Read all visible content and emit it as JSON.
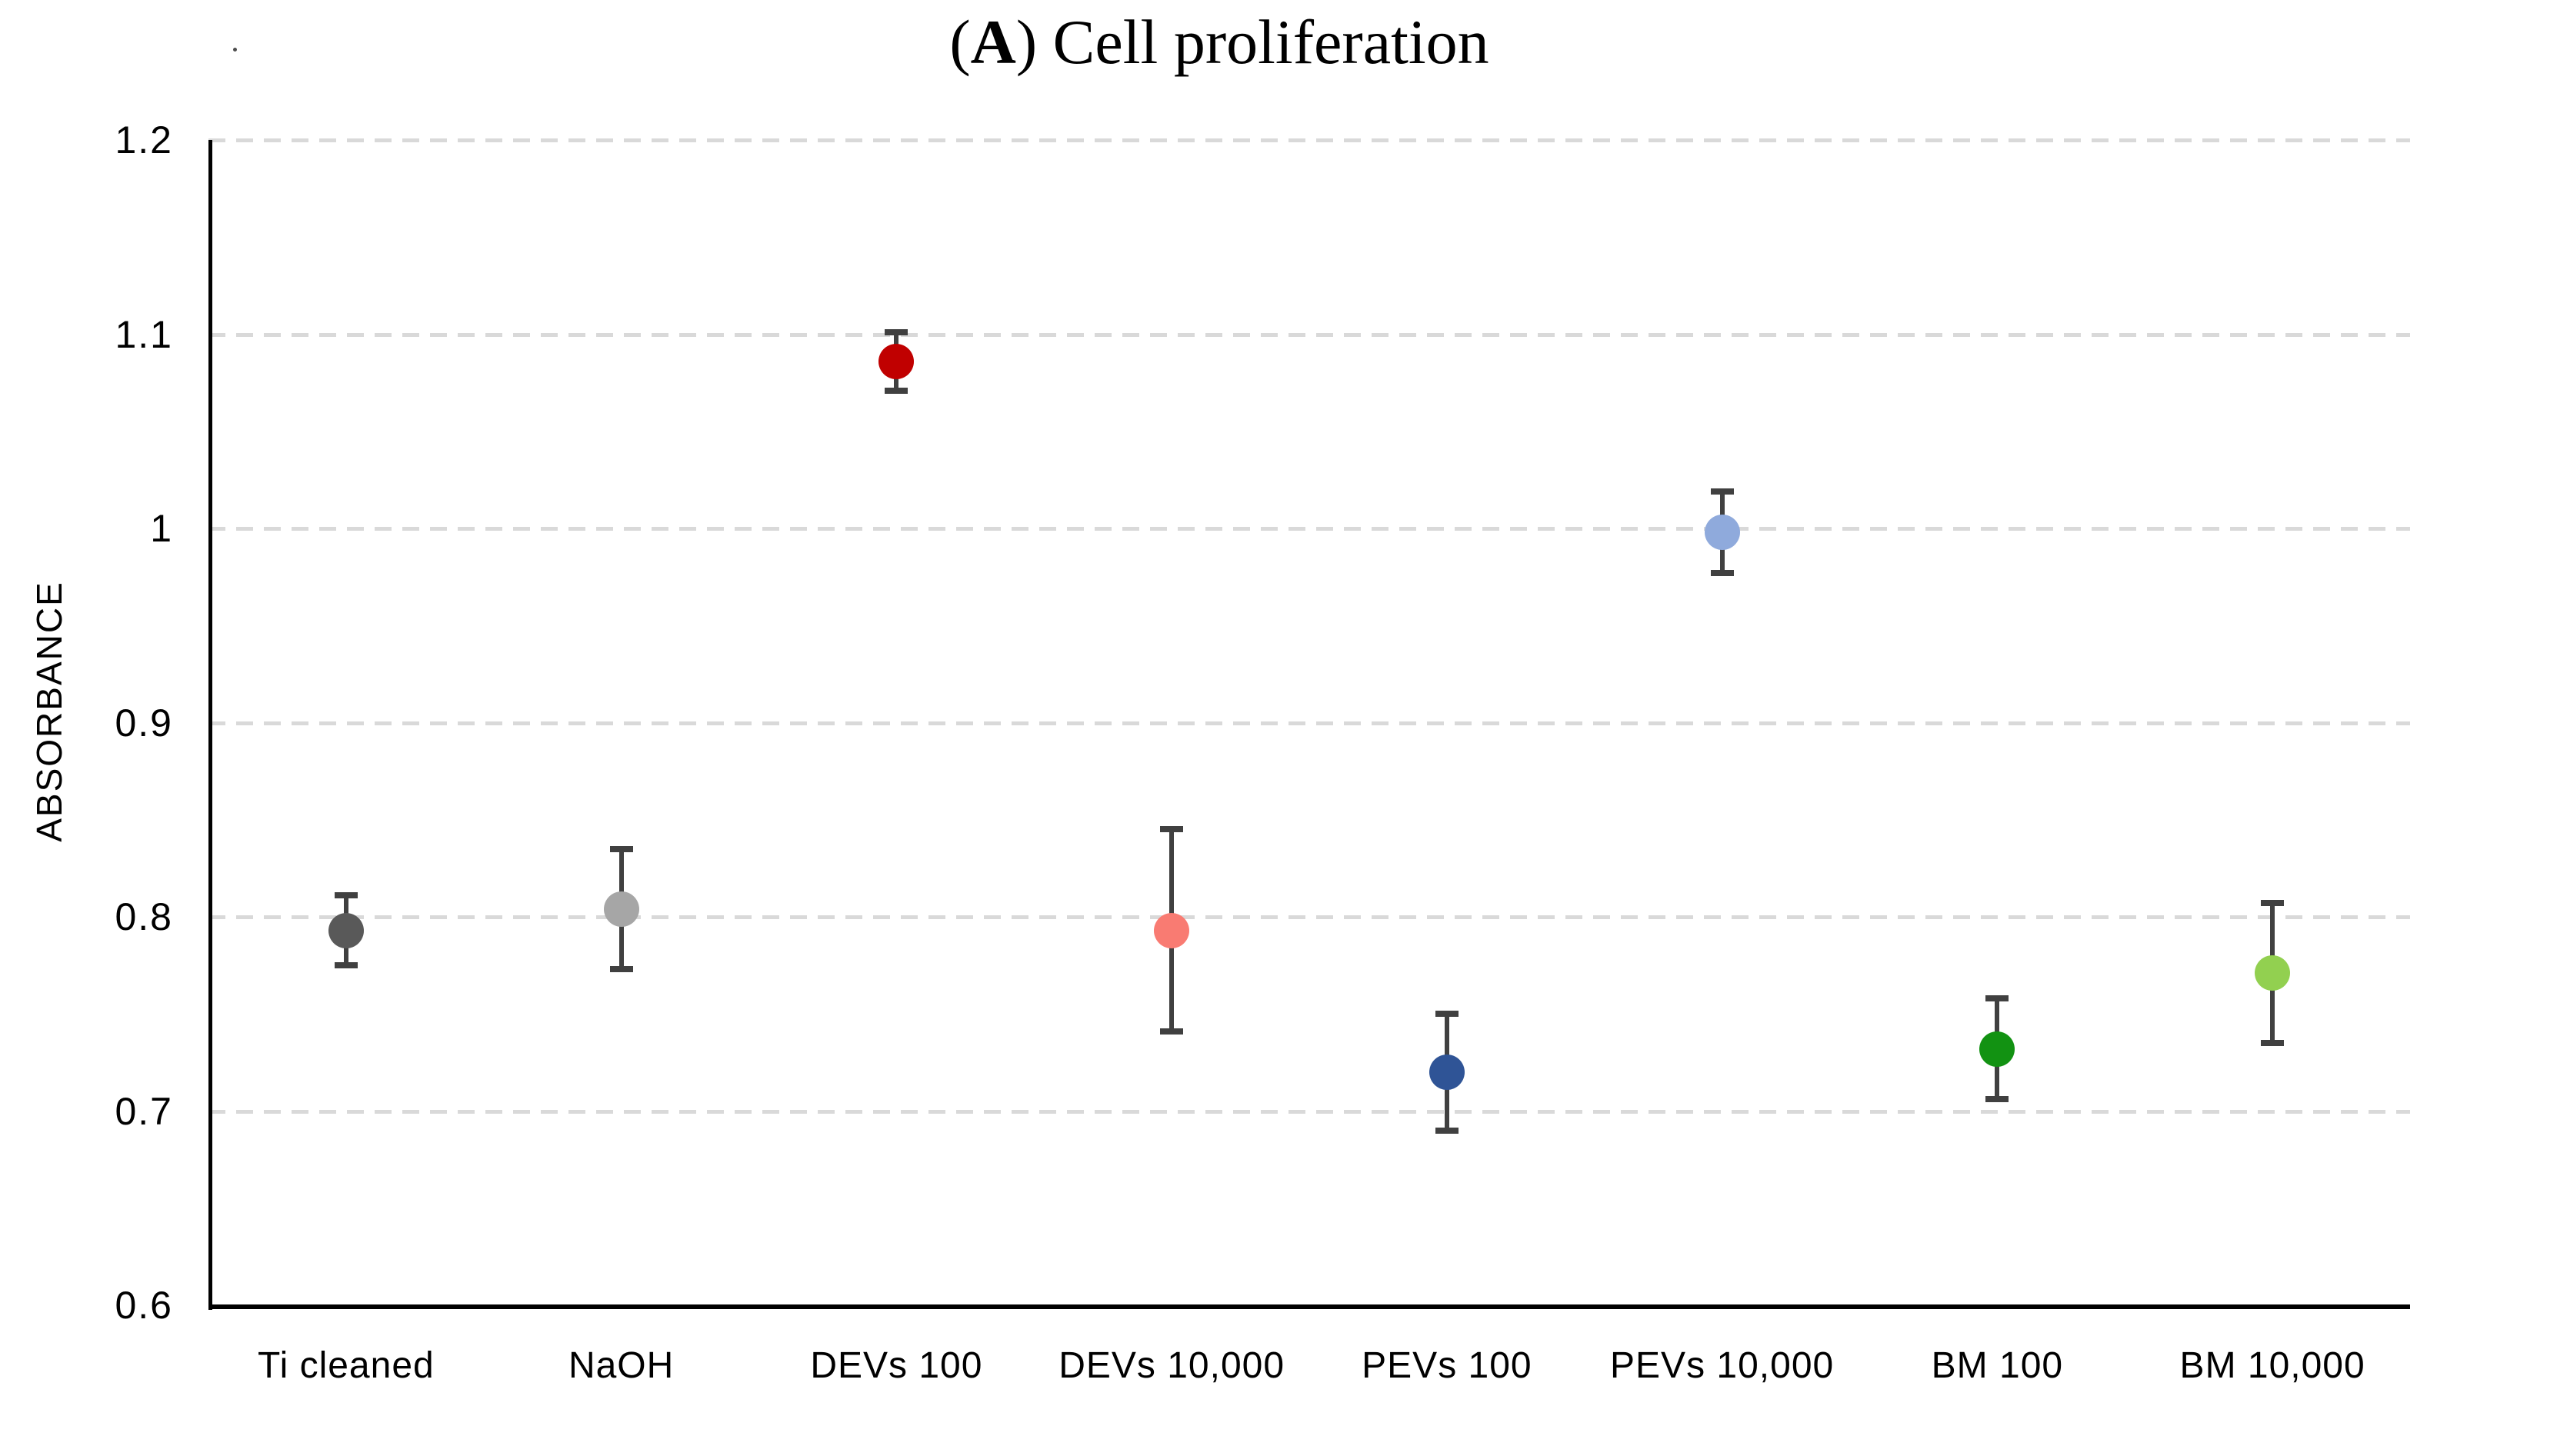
{
  "title": {
    "open": "(",
    "letter": "A",
    "rest": ") Cell proliferation"
  },
  "y_axis": {
    "label": "ABSORBANCE"
  },
  "colors": {
    "background": "#FFFFFF",
    "axis": "#000000",
    "gridline": "#D9D9D9",
    "error_bar": "#404040",
    "text": "#000000"
  },
  "chart_data": {
    "type": "scatter",
    "title": "(A) Cell proliferation",
    "xlabel": "",
    "ylabel": "ABSORBANCE",
    "ylim": [
      0.6,
      1.2
    ],
    "yticks": [
      "1.2",
      "1.1",
      "1",
      "0.9",
      "0.8",
      "0.7",
      "0.6"
    ],
    "grid": "horizontal dashed gridlines at 0.7-1.2; baseline 0.6 is solid x-axis",
    "legend_position": "none",
    "points": [
      {
        "label": "Ti cleaned",
        "value": 0.793,
        "error": 0.018,
        "color": "#595959"
      },
      {
        "label": "NaOH",
        "value": 0.804,
        "error": 0.031,
        "color": "#A6A6A6"
      },
      {
        "label": "DEVs 100",
        "value": 1.086,
        "error": 0.015,
        "color": "#C00000"
      },
      {
        "label": "DEVs 10,000",
        "value": 0.793,
        "error": 0.052,
        "color": "#F97B72"
      },
      {
        "label": "PEVs 100",
        "value": 0.72,
        "error": 0.03,
        "color": "#2F5496"
      },
      {
        "label": "PEVs 10,000",
        "value": 0.998,
        "error": 0.021,
        "color": "#8FAADC"
      },
      {
        "label": "BM 100",
        "value": 0.732,
        "error": 0.026,
        "color": "#129212"
      },
      {
        "label": "BM 10,000",
        "value": 0.771,
        "error": 0.036,
        "color": "#92D050"
      }
    ]
  }
}
